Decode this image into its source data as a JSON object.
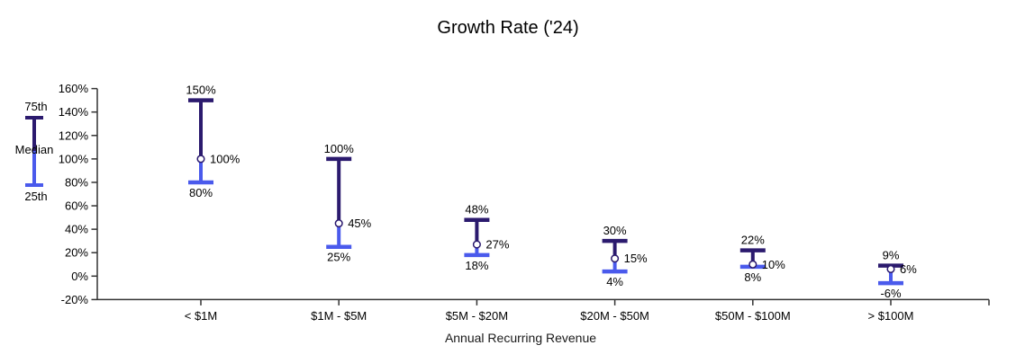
{
  "chart": {
    "title": "Growth Rate ('24)",
    "xlabel": "Annual Recurring Revenue"
  },
  "legend": {
    "top_label": "75th",
    "middle_label": "Median",
    "bottom_label": "25th"
  },
  "chart_data": {
    "type": "range-bar",
    "title": "Growth Rate ('24)",
    "xlabel": "Annual Recurring Revenue",
    "ylabel": "",
    "categories": [
      "< $1M",
      "$1M - $5M",
      "$5M - $20M",
      "$20M - $50M",
      "$50M - $100M",
      "> $100M"
    ],
    "series": [
      {
        "name": "75th",
        "values": [
          150,
          100,
          48,
          30,
          22,
          9
        ]
      },
      {
        "name": "Median",
        "values": [
          100,
          45,
          27,
          15,
          10,
          6
        ]
      },
      {
        "name": "25th",
        "values": [
          80,
          25,
          18,
          4,
          8,
          -6
        ]
      }
    ],
    "unit": "%",
    "ylim": [
      -20,
      160
    ],
    "ytick_step": 20,
    "grid": false,
    "legend_position": "left",
    "colors": {
      "upper_segment": "#2B1A6E",
      "lower_segment": "#4A5AEC",
      "median_marker_fill": "#FFFFFF",
      "axis": "#333333",
      "label_text": "#000000"
    }
  }
}
